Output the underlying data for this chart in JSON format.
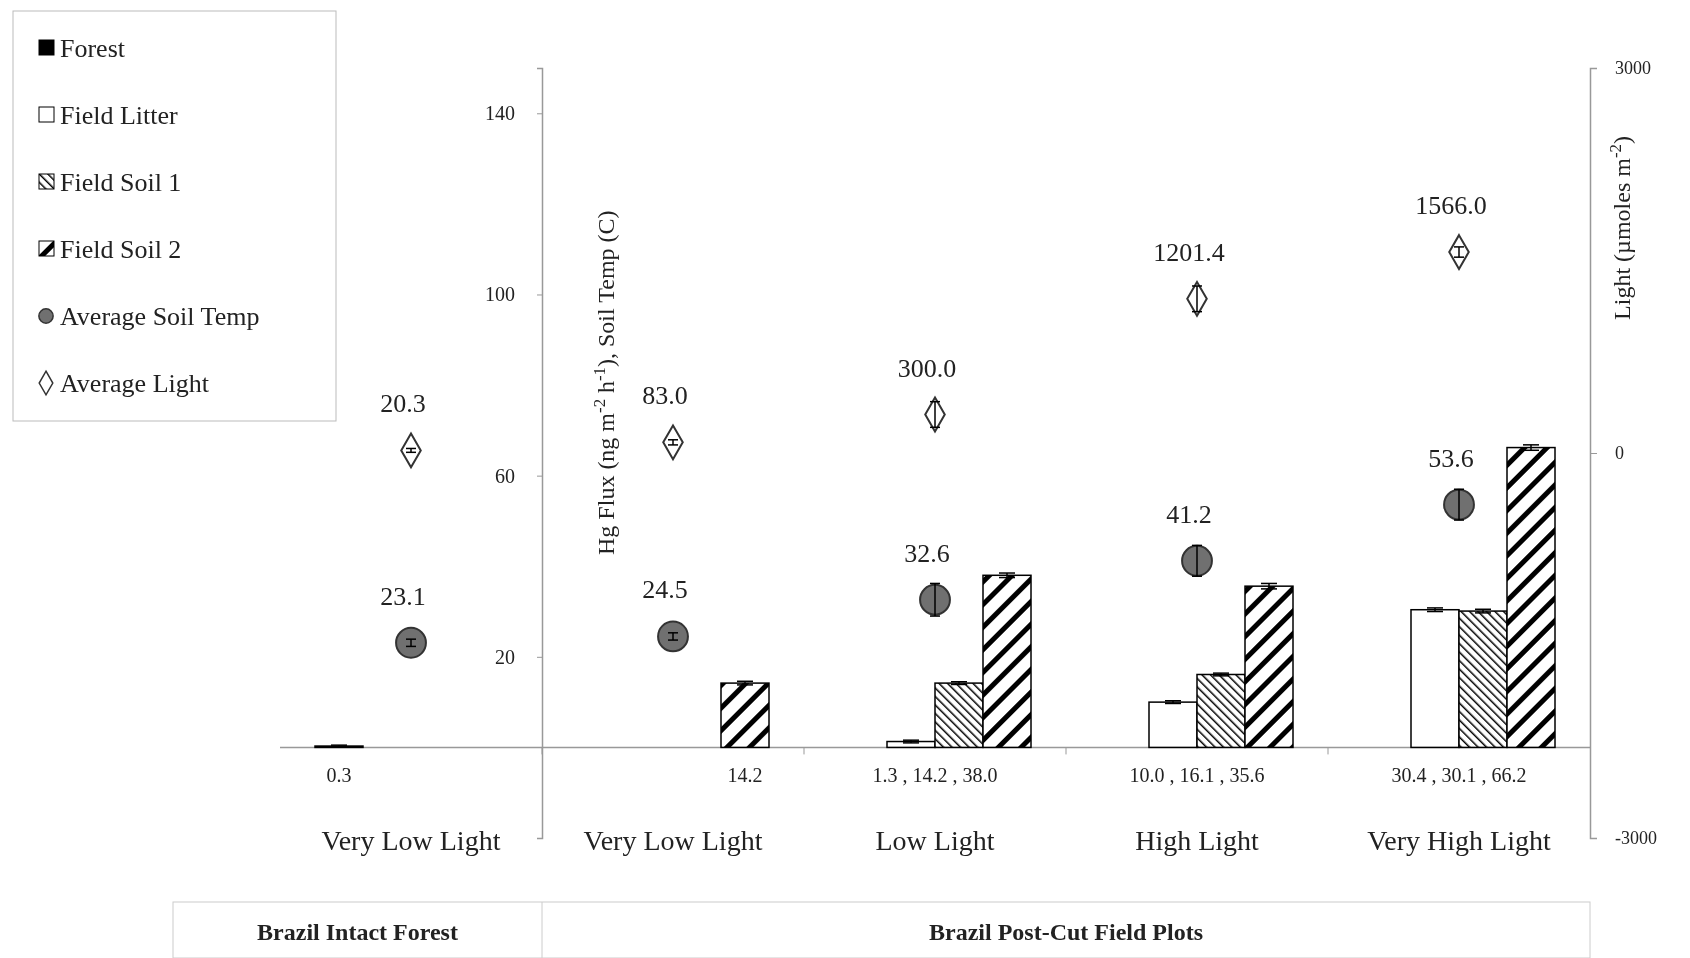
{
  "chart_data": {
    "type": "bar",
    "ylabel": "Hg Flux (ng m$^{-2}$ h$^{-1}$), Soil Temp (C)",
    "y2label": "Light (µmoles m$^{-2}$)",
    "categories": [
      "Very Low Light",
      "Very Low Light",
      "Low Light",
      "High Light",
      "Very High Light"
    ],
    "series": [
      {
        "name": "Forest",
        "color": "#000000",
        "values": [
          0.3,
          null,
          null,
          null,
          null
        ],
        "errors": [
          0.2,
          null,
          null,
          null,
          null
        ],
        "value_labels": [
          "0.3",
          null,
          null,
          null,
          null
        ]
      },
      {
        "name": "Field Litter",
        "color": "#ffffff",
        "values": [
          null,
          null,
          1.3,
          10.0,
          30.4
        ],
        "errors": [
          null,
          null,
          0.3,
          0.3,
          0.4
        ],
        "value_labels": [
          null,
          null,
          "1.3 ,",
          "10.0 ,",
          "30.4 ,"
        ]
      },
      {
        "name": "Field Soil 1",
        "color": "#000000",
        "values": [
          null,
          null,
          14.2,
          16.1,
          30.1
        ],
        "errors": [
          null,
          null,
          0.3,
          0.3,
          0.4
        ],
        "value_labels": [
          null,
          null,
          "14.2 ,",
          "16.1 ,",
          "30.1 ,"
        ]
      },
      {
        "name": "Field Soil 2",
        "color": "#000000",
        "values": [
          null,
          14.2,
          38.0,
          35.6,
          66.2
        ],
        "errors": [
          null,
          0.4,
          0.5,
          0.6,
          0.6
        ],
        "value_labels": [
          null,
          "14.2",
          "38.0",
          "35.6",
          "66.2"
        ]
      },
      {
        "name": "Average Soil Temp",
        "type": "scatter",
        "marker": "circle",
        "color": "#707070",
        "values": [
          23.1,
          24.5,
          32.6,
          41.2,
          53.6
        ],
        "errors": [
          0.8,
          0.8,
          3.6,
          3.4,
          3.4
        ],
        "value_labels": [
          "23.1",
          "24.5",
          "32.6",
          "41.2",
          "53.6"
        ]
      },
      {
        "name": "Average Light",
        "type": "scatter",
        "marker": "diamond",
        "axis": "y2",
        "color": "#ffffff",
        "values": [
          20.3,
          83.0,
          300.0,
          1201.4,
          1566.0
        ],
        "errors": [
          15,
          20,
          100,
          100,
          40
        ],
        "value_labels": [
          "20.3",
          "83.0",
          "300.0",
          "1201.4",
          "1566.0"
        ]
      }
    ],
    "ylim": [
      -20,
      150
    ],
    "yticks": [
      20,
      60,
      100,
      140
    ],
    "y2lim": [
      -3000,
      3000
    ],
    "y2ticks": [
      -3000,
      0,
      3000
    ],
    "legend": "top left",
    "annotations": [
      "Brazil Intact Forest",
      "Brazil Post-Cut Field Plots"
    ]
  }
}
